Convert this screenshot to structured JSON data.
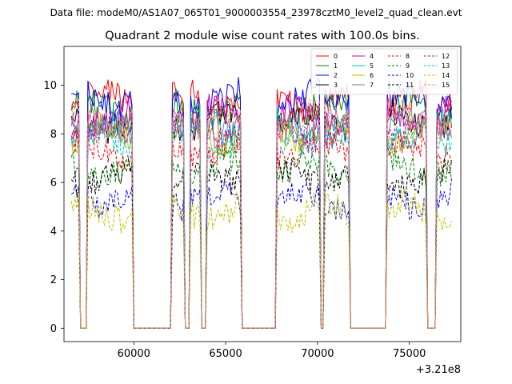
{
  "chart_data": {
    "type": "line",
    "suptitle": "Data file: modeM0/AS1A07_065T01_9000003554_23978cztM0_level2_quad_clean.evt",
    "title": "Quadrant 2 module wise count rates with 100.0s bins.",
    "xlabel": "",
    "ylabel": "",
    "x_offset_label": "+3.21e8",
    "x_offset": 321000000,
    "xlim": [
      56200,
      77800
    ],
    "ylim": [
      -0.55,
      11.6
    ],
    "xticks": [
      60000,
      65000,
      70000,
      75000
    ],
    "xtick_labels": [
      "60000",
      "65000",
      "70000",
      "75000"
    ],
    "yticks": [
      0,
      2,
      4,
      6,
      8,
      10
    ],
    "ytick_labels": [
      "0",
      "2",
      "4",
      "6",
      "8",
      "10"
    ],
    "bin_seconds": 100,
    "legend_position": "top-right",
    "on_segments": [
      [
        56600,
        57050
      ],
      [
        57450,
        59950
      ],
      [
        62050,
        62750
      ],
      [
        63100,
        63650
      ],
      [
        63950,
        65800
      ],
      [
        67800,
        70100
      ],
      [
        70350,
        71700
      ],
      [
        73800,
        75900
      ],
      [
        76500,
        77350
      ]
    ],
    "off_level": 0,
    "series": [
      {
        "name": "0",
        "color": "#ff0000",
        "dash": "solid",
        "level": 9.4
      },
      {
        "name": "1",
        "color": "#008000",
        "dash": "solid",
        "level": 9.0
      },
      {
        "name": "2",
        "color": "#0000ff",
        "dash": "solid",
        "level": 9.4
      },
      {
        "name": "3",
        "color": "#000000",
        "dash": "solid",
        "level": 8.5
      },
      {
        "name": "4",
        "color": "#bf00bf",
        "dash": "solid",
        "level": 8.7
      },
      {
        "name": "5",
        "color": "#00bfbf",
        "dash": "solid",
        "level": 8.2
      },
      {
        "name": "6",
        "color": "#bfbf00",
        "dash": "solid",
        "level": 8.0
      },
      {
        "name": "7",
        "color": "#808080",
        "dash": "solid",
        "level": 8.3
      },
      {
        "name": "8",
        "color": "#ff0000",
        "dash": "dashed",
        "level": 7.4
      },
      {
        "name": "9",
        "color": "#008000",
        "dash": "dashed",
        "level": 6.6
      },
      {
        "name": "10",
        "color": "#0000ff",
        "dash": "dashed",
        "level": 5.3
      },
      {
        "name": "11",
        "color": "#000000",
        "dash": "dashed",
        "level": 6.2
      },
      {
        "name": "12",
        "color": "#bf00bf",
        "dash": "dashed",
        "level": 8.1
      },
      {
        "name": "13",
        "color": "#00bfbf",
        "dash": "dashed",
        "level": 7.8
      },
      {
        "name": "14",
        "color": "#bfbf00",
        "dash": "dashed",
        "level": 4.8
      },
      {
        "name": "15",
        "color": "#ff8080",
        "dash": "dashed",
        "level": 8.6
      }
    ]
  }
}
